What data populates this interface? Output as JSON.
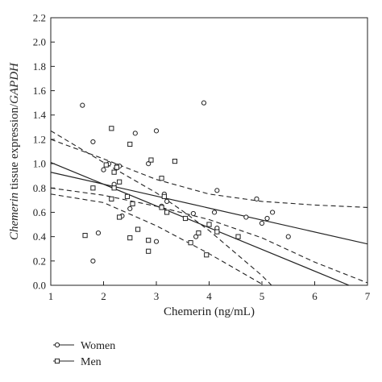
{
  "chart_data": {
    "type": "scatter",
    "xlabel": "Chemerin (ng/mL)",
    "ylabel_parts": [
      {
        "text": "Chemerin",
        "italic": true
      },
      {
        "text": " tissue expression/",
        "italic": false
      },
      {
        "text": "GAPDH",
        "italic": true
      }
    ],
    "xlim": [
      1,
      7
    ],
    "ylim": [
      0,
      2.2
    ],
    "xticks": [
      1,
      2,
      3,
      4,
      5,
      6,
      7
    ],
    "yticks": [
      0.0,
      0.2,
      0.4,
      0.6,
      0.8,
      1.0,
      1.2,
      1.4,
      1.6,
      1.8,
      2.0,
      2.2
    ],
    "ytick_labels": [
      "0.0",
      "0.2",
      "0.4",
      "0.6",
      "0.8",
      "1.0",
      "1.2",
      "1.4",
      "1.6",
      "1.8",
      "2.0",
      "2.2"
    ],
    "grid": false,
    "legend_position": "bottom-left",
    "series": [
      {
        "name": "Women",
        "marker": "circle",
        "points": [
          [
            1.6,
            1.48
          ],
          [
            1.8,
            1.18
          ],
          [
            1.8,
            0.2
          ],
          [
            1.9,
            0.43
          ],
          [
            2.0,
            0.95
          ],
          [
            2.1,
            1.0
          ],
          [
            2.2,
            0.83
          ],
          [
            2.25,
            0.98
          ],
          [
            2.3,
            0.98
          ],
          [
            2.35,
            0.57
          ],
          [
            2.5,
            0.63
          ],
          [
            2.6,
            1.25
          ],
          [
            2.85,
            1.0
          ],
          [
            3.0,
            1.27
          ],
          [
            3.0,
            0.36
          ],
          [
            3.1,
            0.65
          ],
          [
            3.15,
            0.75
          ],
          [
            3.2,
            0.69
          ],
          [
            3.7,
            0.59
          ],
          [
            3.75,
            0.4
          ],
          [
            3.9,
            1.5
          ],
          [
            4.1,
            0.6
          ],
          [
            4.15,
            0.78
          ],
          [
            4.15,
            0.47
          ],
          [
            4.7,
            0.56
          ],
          [
            4.9,
            0.71
          ],
          [
            5.0,
            0.51
          ],
          [
            5.1,
            0.55
          ],
          [
            5.2,
            0.6
          ],
          [
            5.5,
            0.4
          ]
        ]
      },
      {
        "name": "Men",
        "marker": "square",
        "points": [
          [
            1.65,
            0.41
          ],
          [
            1.8,
            0.8
          ],
          [
            2.05,
            0.99
          ],
          [
            2.15,
            1.29
          ],
          [
            2.15,
            0.71
          ],
          [
            2.2,
            0.93
          ],
          [
            2.2,
            0.8
          ],
          [
            2.25,
            0.97
          ],
          [
            2.3,
            0.85
          ],
          [
            2.3,
            0.56
          ],
          [
            2.45,
            0.73
          ],
          [
            2.5,
            1.16
          ],
          [
            2.5,
            0.39
          ],
          [
            2.55,
            0.67
          ],
          [
            2.65,
            0.46
          ],
          [
            2.85,
            0.37
          ],
          [
            2.85,
            0.28
          ],
          [
            2.9,
            1.03
          ],
          [
            3.1,
            0.88
          ],
          [
            3.1,
            0.64
          ],
          [
            3.15,
            0.73
          ],
          [
            3.2,
            0.6
          ],
          [
            3.35,
            1.02
          ],
          [
            3.55,
            0.55
          ],
          [
            3.65,
            0.35
          ],
          [
            3.8,
            0.43
          ],
          [
            3.95,
            0.25
          ],
          [
            4.0,
            0.5
          ],
          [
            4.15,
            0.44
          ],
          [
            4.55,
            0.4
          ]
        ]
      }
    ],
    "fit_lines": [
      {
        "group": "Men",
        "points": [
          [
            1,
            1.01
          ],
          [
            6.65,
            0.0
          ]
        ]
      },
      {
        "group": "Women",
        "points": [
          [
            1,
            0.93
          ],
          [
            7,
            0.34
          ]
        ]
      }
    ],
    "confidence_bands": [
      {
        "group": "Men",
        "bound": "upper",
        "points": [
          [
            1,
            1.27
          ],
          [
            2,
            1.01
          ],
          [
            3,
            0.76
          ],
          [
            3.5,
            0.61
          ],
          [
            4,
            0.45
          ],
          [
            5,
            0.08
          ],
          [
            5.5,
            -0.14
          ]
        ]
      },
      {
        "group": "Men",
        "bound": "lower",
        "points": [
          [
            1,
            0.75
          ],
          [
            2,
            0.68
          ],
          [
            3,
            0.49
          ],
          [
            4,
            0.26
          ],
          [
            5,
            0.01
          ],
          [
            5.2,
            -0.05
          ]
        ]
      },
      {
        "group": "Women",
        "bound": "upper",
        "points": [
          [
            1,
            1.2
          ],
          [
            2,
            1.04
          ],
          [
            3,
            0.87
          ],
          [
            4,
            0.75
          ],
          [
            5,
            0.69
          ],
          [
            6,
            0.66
          ],
          [
            7,
            0.64
          ]
        ]
      },
      {
        "group": "Women",
        "bound": "lower",
        "points": [
          [
            1,
            0.8
          ],
          [
            2,
            0.74
          ],
          [
            3,
            0.65
          ],
          [
            4,
            0.54
          ],
          [
            5,
            0.39
          ],
          [
            6,
            0.19
          ],
          [
            7,
            0.02
          ]
        ]
      }
    ]
  }
}
